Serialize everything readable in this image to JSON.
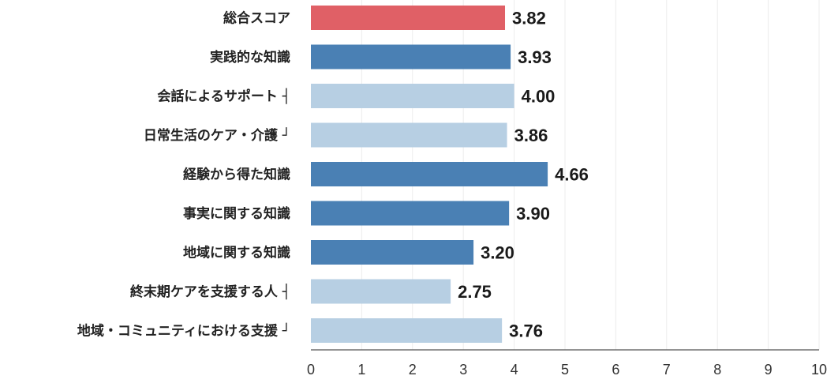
{
  "chart_data": {
    "type": "bar",
    "orientation": "horizontal",
    "categories": [
      "総合スコア",
      "実践的な知識",
      "会話によるサポート ┤",
      "日常生活のケア・介護 ┘",
      "経験から得た知識",
      "事実に関する知識",
      "地域に関する知識",
      "終末期ケアを支援する人 ┤",
      "地域・コミュニティにおける支援 ┘"
    ],
    "values": [
      3.82,
      3.93,
      4.0,
      3.86,
      4.66,
      3.9,
      3.2,
      2.75,
      3.76
    ],
    "value_labels": [
      "3.82",
      "3.93",
      "4.00",
      "3.86",
      "4.66",
      "3.90",
      "3.20",
      "2.75",
      "3.76"
    ],
    "bar_colors": [
      "#e06066",
      "#4a80b4",
      "#b7cfe3",
      "#b7cfe3",
      "#4a80b4",
      "#4a80b4",
      "#4a80b4",
      "#b7cfe3",
      "#b7cfe3"
    ],
    "xlim": [
      0,
      10
    ],
    "xticks": [
      "0",
      "1",
      "2",
      "3",
      "4",
      "5",
      "6",
      "7",
      "8",
      "9",
      "10"
    ],
    "grid": "vertical",
    "title": "",
    "xlabel": "",
    "ylabel": ""
  }
}
